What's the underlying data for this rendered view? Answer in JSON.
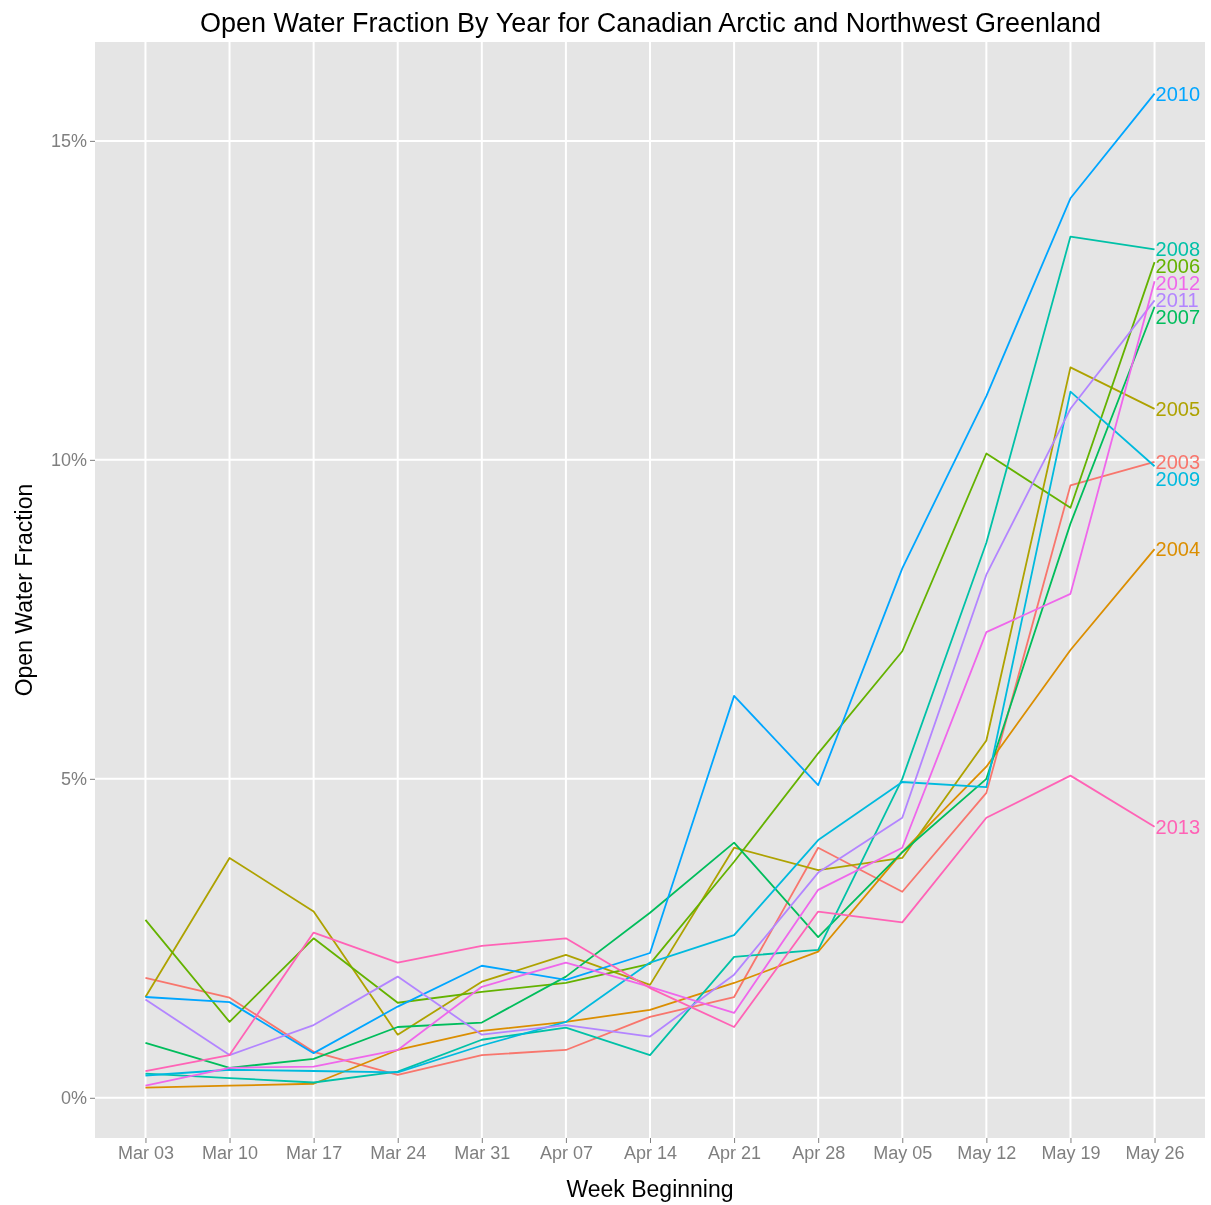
{
  "chart_data": {
    "type": "line",
    "title": "Open Water Fraction By Year for Canadian Arctic and Northwest Greenland",
    "xlabel": "Week Beginning",
    "ylabel": "Open Water Fraction",
    "categories": [
      "Mar 03",
      "Mar 10",
      "Mar 17",
      "Mar 24",
      "Mar 31",
      "Apr 07",
      "Apr 14",
      "Apr 21",
      "Apr 28",
      "May 05",
      "May 12",
      "May 19",
      "May 26"
    ],
    "ylim": [
      -0.63,
      16.55
    ],
    "yticks": [
      {
        "value": 0,
        "label": "0%"
      },
      {
        "value": 5,
        "label": "5%"
      },
      {
        "value": 10,
        "label": "10%"
      },
      {
        "value": 15,
        "label": "15%"
      }
    ],
    "grid": true,
    "marker": "none",
    "line_style": "solid",
    "series": [
      {
        "name": "2003",
        "color": "#f8766d",
        "values": [
          1.88,
          1.57,
          0.72,
          0.36,
          0.67,
          0.75,
          1.27,
          1.58,
          3.92,
          3.23,
          4.78,
          9.6,
          9.97
        ]
      },
      {
        "name": "2004",
        "color": "#db8e00",
        "values": [
          0.16,
          0.19,
          0.22,
          0.75,
          1.05,
          1.19,
          1.38,
          1.8,
          2.29,
          3.85,
          5.19,
          7.02,
          8.6
        ]
      },
      {
        "name": "2005",
        "color": "#aea200",
        "values": [
          1.58,
          3.76,
          2.92,
          0.99,
          1.82,
          2.24,
          1.77,
          3.92,
          3.57,
          3.76,
          5.6,
          11.45,
          10.8
        ]
      },
      {
        "name": "2006",
        "color": "#64b200",
        "values": [
          2.79,
          1.19,
          2.5,
          1.49,
          1.66,
          1.8,
          2.1,
          3.7,
          5.4,
          7.0,
          10.1,
          9.25,
          13.1
        ]
      },
      {
        "name": "2007",
        "color": "#00bd5c",
        "values": [
          0.86,
          0.47,
          0.61,
          1.11,
          1.18,
          1.9,
          2.9,
          4.0,
          2.52,
          3.85,
          5.0,
          9.0,
          12.4
        ]
      },
      {
        "name": "2008",
        "color": "#00c1a7",
        "values": [
          0.38,
          0.31,
          0.24,
          0.41,
          0.91,
          1.1,
          0.67,
          2.21,
          2.32,
          5.0,
          8.7,
          13.5,
          13.3
        ]
      },
      {
        "name": "2009",
        "color": "#00bade",
        "values": [
          0.35,
          0.44,
          0.42,
          0.4,
          0.82,
          1.19,
          2.12,
          2.55,
          4.04,
          4.95,
          4.87,
          11.07,
          9.9
        ]
      },
      {
        "name": "2010",
        "color": "#00a6ff",
        "values": [
          1.58,
          1.5,
          0.7,
          1.43,
          2.07,
          1.85,
          2.27,
          6.3,
          4.9,
          8.3,
          11.0,
          14.1,
          15.74
        ]
      },
      {
        "name": "2011",
        "color": "#b385ff",
        "values": [
          1.54,
          0.67,
          1.14,
          1.9,
          0.99,
          1.14,
          0.96,
          1.93,
          3.53,
          4.39,
          8.2,
          10.8,
          12.5
        ]
      },
      {
        "name": "2012",
        "color": "#ef67eb",
        "values": [
          0.19,
          0.47,
          0.49,
          0.75,
          1.74,
          2.12,
          1.74,
          1.33,
          3.26,
          3.92,
          7.3,
          7.9,
          12.8
        ]
      },
      {
        "name": "2013",
        "color": "#ff63b6",
        "values": [
          0.42,
          0.67,
          2.59,
          2.12,
          2.38,
          2.5,
          1.72,
          1.11,
          2.92,
          2.75,
          4.39,
          5.05,
          4.25
        ]
      }
    ]
  }
}
